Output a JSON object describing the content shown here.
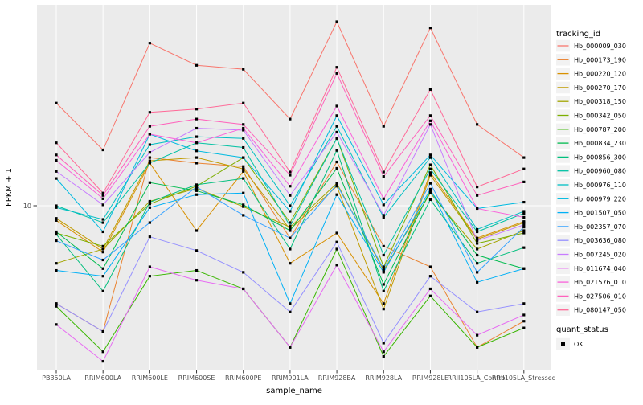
{
  "chart_data": {
    "type": "line",
    "title": "",
    "xlabel": "sample_name",
    "ylabel": "FPKM + 1",
    "y_scale": "log10",
    "y_tick_labels": [
      "10"
    ],
    "y_range_approx": [
      1.7,
      95
    ],
    "grid": true,
    "legend_position": "right",
    "legend_title": "tracking_id",
    "point_legend": {
      "title": "quant_status",
      "items": [
        "OK"
      ],
      "point_shape": "black-filled-square"
    },
    "categories": [
      "PB350LA",
      "RRIM600LA",
      "RRIM600LE",
      "RRIM600SE",
      "RRIM600PE",
      "RRIM901LA",
      "RRIM928BA",
      "RRIM928LA",
      "RRIM928LE",
      "RRII105LA_Control",
      "RRII105LA_Stressed"
    ],
    "series": [
      {
        "name": "Hb_000009_030",
        "color": "#F8766D",
        "values": [
          31,
          18.5,
          60,
          47,
          45,
          26,
          76,
          24,
          71,
          24.5,
          17
        ]
      },
      {
        "name": "Hb_000173_190",
        "color": "#EA8331",
        "values": [
          3.4,
          2.5,
          17,
          16,
          15.4,
          7,
          16.2,
          6.4,
          5.1,
          2.1,
          2.8
        ]
      },
      {
        "name": "Hb_000220_120",
        "color": "#D89000",
        "values": [
          8.5,
          6,
          16,
          7.6,
          14.6,
          5.3,
          7.4,
          3.4,
          14.4,
          7,
          8.4
        ]
      },
      {
        "name": "Hb_000270_170",
        "color": "#C09B00",
        "values": [
          8.7,
          6.2,
          16.4,
          17,
          15,
          7.7,
          12.4,
          3.2,
          14,
          6.9,
          8.3
        ]
      },
      {
        "name": "Hb_000318_150",
        "color": "#A3A500",
        "values": [
          5.3,
          6.2,
          10.5,
          12.1,
          9.9,
          7.9,
          12.8,
          4.9,
          11.5,
          6.2,
          7.6
        ]
      },
      {
        "name": "Hb_000342_050",
        "color": "#7CAE00",
        "values": [
          7.4,
          6.4,
          10.2,
          12.4,
          17,
          8.3,
          21,
          5.1,
          15.7,
          6.6,
          7.4
        ]
      },
      {
        "name": "Hb_000787_200",
        "color": "#39B600",
        "values": [
          3.3,
          2,
          4.6,
          4.9,
          4,
          2.1,
          6.2,
          1.9,
          3.7,
          2.1,
          2.6
        ]
      },
      {
        "name": "Hb_000834_230",
        "color": "#00BB4E",
        "values": [
          7.5,
          5,
          12.9,
          11.8,
          10.1,
          7.6,
          15.1,
          4.2,
          11.8,
          5.8,
          5
        ]
      },
      {
        "name": "Hb_000856_300",
        "color": "#00BF7D",
        "values": [
          7.3,
          3.9,
          10.4,
          12.6,
          13.5,
          6.2,
          18.4,
          3.9,
          10.7,
          5.3,
          6.3
        ]
      },
      {
        "name": "Hb_000960_080",
        "color": "#00C1A3",
        "values": [
          10,
          8.3,
          16,
          20,
          19,
          8,
          21,
          5.8,
          15,
          7.5,
          9.2
        ]
      },
      {
        "name": "Hb_000976_110",
        "color": "#00BFC4",
        "values": [
          9.8,
          8.6,
          19.6,
          21.4,
          21,
          10,
          24,
          8.8,
          17,
          7.7,
          9.4
        ]
      },
      {
        "name": "Hb_000979_220",
        "color": "#00BAE0",
        "values": [
          13.5,
          7.5,
          22,
          18.3,
          17,
          9.4,
          27,
          10.1,
          17.5,
          9.7,
          10.4
        ]
      },
      {
        "name": "Hb_001507_050",
        "color": "#00B0F6",
        "values": [
          4.9,
          4.6,
          9.8,
          11.3,
          11.5,
          3.4,
          11.3,
          4.8,
          12,
          4.3,
          5
        ]
      },
      {
        "name": "Hb_002357_070",
        "color": "#35A2FF",
        "values": [
          6.8,
          5.5,
          8.3,
          12.3,
          9,
          7,
          12.6,
          5,
          12.8,
          4.8,
          7.9
        ]
      },
      {
        "name": "Hb_003636_080",
        "color": "#9590FF",
        "values": [
          3.4,
          2.5,
          7.1,
          6.1,
          4.8,
          3.1,
          6.7,
          2.2,
          4.6,
          3.1,
          3.4
        ]
      },
      {
        "name": "Hb_007245_020",
        "color": "#C77CFF",
        "values": [
          14.6,
          10.1,
          18,
          23.5,
          23,
          11.2,
          22.5,
          9,
          24.5,
          6.8,
          8.1
        ]
      },
      {
        "name": "Hb_011674_040",
        "color": "#E76BF3",
        "values": [
          2.7,
          1.8,
          5.1,
          4.4,
          4,
          2.1,
          5.2,
          2,
          4,
          2.4,
          3
        ]
      },
      {
        "name": "Hb_021576_010",
        "color": "#FA62DB",
        "values": [
          16.5,
          10.8,
          22,
          20,
          23.5,
          12.4,
          30,
          10.8,
          25.5,
          9.7,
          8.8
        ]
      },
      {
        "name": "Hb_027506_010",
        "color": "#FF62BC",
        "values": [
          17.5,
          11.2,
          24,
          26,
          24.5,
          14,
          43,
          13.8,
          27,
          11.2,
          13
        ]
      },
      {
        "name": "Hb_080147_050",
        "color": "#FF6A98",
        "values": [
          20,
          11.5,
          28,
          29,
          31,
          14.5,
          46,
          14.5,
          36,
          12.3,
          15
        ]
      }
    ]
  },
  "colors": {
    "panel_background": "#EBEBEB",
    "gridline": "#FFFFFF",
    "point": "#000000",
    "axis_text": "#4D4D4D",
    "legend_key_background": "#F2F2F2"
  }
}
